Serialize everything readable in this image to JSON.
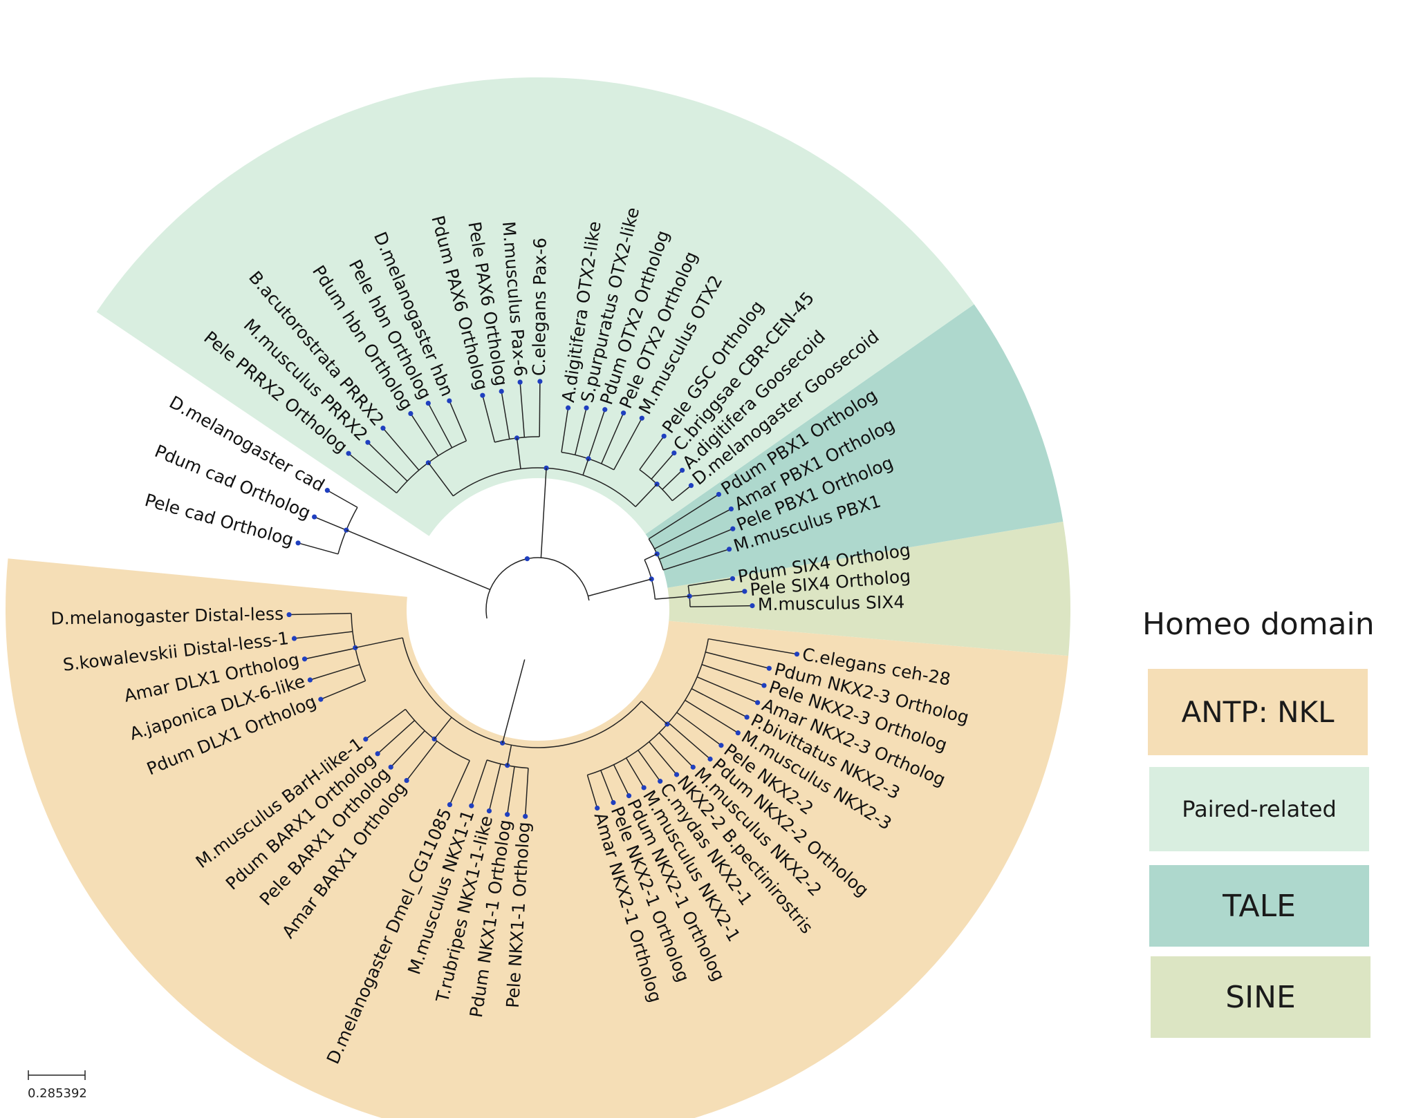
{
  "legend": {
    "title": "Homeo domain",
    "items": [
      {
        "label": "ANTP: NKL",
        "color": "#f5deb6"
      },
      {
        "label": "Paired-related",
        "color": "#d9eee0"
      },
      {
        "label": "TALE",
        "color": "#aed8cd"
      },
      {
        "label": "SINE",
        "color": "#dce5c3"
      }
    ]
  },
  "scale_bar": {
    "label": "0.285392"
  },
  "clades": [
    {
      "name": "ANTP: NKL",
      "color": "#f5deb6"
    },
    {
      "name": "SINE",
      "color": "#dce5c3"
    },
    {
      "name": "TALE",
      "color": "#aed8cd"
    },
    {
      "name": "Paired-related",
      "color": "#d9eee0"
    }
  ],
  "leaves": [
    {
      "label": "C.elegans ceh-28",
      "clade": "ANTP: NKL"
    },
    {
      "label": "Pdum NKX2-3 Ortholog",
      "clade": "ANTP: NKL"
    },
    {
      "label": "Pele NKX2-3 Ortholog",
      "clade": "ANTP: NKL"
    },
    {
      "label": "Amar NKX2-3 Ortholog",
      "clade": "ANTP: NKL"
    },
    {
      "label": "P.bivittatus NKX2-3",
      "clade": "ANTP: NKL"
    },
    {
      "label": "M.musculus NKX2-3",
      "clade": "ANTP: NKL"
    },
    {
      "label": "Pele NKX2-2",
      "clade": "ANTP: NKL"
    },
    {
      "label": "Pdum NKX2-2 Ortholog",
      "clade": "ANTP: NKL"
    },
    {
      "label": "M.musculus NKX2-2",
      "clade": "ANTP: NKL"
    },
    {
      "label": "NKX2-2 B.pectinirostris",
      "clade": "ANTP: NKL"
    },
    {
      "label": "C.mydas NKX2-1",
      "clade": "ANTP: NKL"
    },
    {
      "label": "M.musculus NKX2-1",
      "clade": "ANTP: NKL"
    },
    {
      "label": "Pdum NKX2-1 Ortholog",
      "clade": "ANTP: NKL"
    },
    {
      "label": "Pele NKX2-1 Ortholog",
      "clade": "ANTP: NKL"
    },
    {
      "label": "Amar NKX2-1 Ortholog",
      "clade": "ANTP: NKL"
    },
    {
      "label": "Pele NKX1-1 Ortholog",
      "clade": "ANTP: NKL"
    },
    {
      "label": "Pdum NKX1-1 Ortholog",
      "clade": "ANTP: NKL"
    },
    {
      "label": "T.rubripes NKX1-1-like",
      "clade": "ANTP: NKL"
    },
    {
      "label": "M.musculus NKX1-1",
      "clade": "ANTP: NKL"
    },
    {
      "label": "D.melanogaster Dmel_CG11085",
      "clade": "ANTP: NKL"
    },
    {
      "label": "Amar BARX1 Ortholog",
      "clade": "ANTP: NKL"
    },
    {
      "label": "Pele BARX1 Ortholog",
      "clade": "ANTP: NKL"
    },
    {
      "label": "Pdum BARX1 Ortholog",
      "clade": "ANTP: NKL"
    },
    {
      "label": "M.musculus BarH-like-1",
      "clade": "ANTP: NKL"
    },
    {
      "label": "Pdum DLX1 Ortholog",
      "clade": "ANTP: NKL"
    },
    {
      "label": "A.japonica DLX-6-like",
      "clade": "ANTP: NKL"
    },
    {
      "label": "Amar DLX1 Ortholog",
      "clade": "ANTP: NKL"
    },
    {
      "label": "S.kowalevskii Distal-less-1",
      "clade": "ANTP: NKL"
    },
    {
      "label": "D.melanogaster Distal-less",
      "clade": "ANTP: NKL"
    },
    {
      "label": "Pele cad Ortholog",
      "clade": ""
    },
    {
      "label": "Pdum cad Ortholog",
      "clade": ""
    },
    {
      "label": "D.melanogaster cad",
      "clade": ""
    },
    {
      "label": "Pele PRRX2 Ortholog",
      "clade": "Paired-related"
    },
    {
      "label": "M.musculus PRRX2",
      "clade": "Paired-related"
    },
    {
      "label": "B.acutorostrata PRRX2",
      "clade": "Paired-related"
    },
    {
      "label": "Pdum hbn Ortholog",
      "clade": "Paired-related"
    },
    {
      "label": "Pele hbn Ortholog",
      "clade": "Paired-related"
    },
    {
      "label": "D.melanogaster hbn",
      "clade": "Paired-related"
    },
    {
      "label": "Pdum PAX6 Ortholog",
      "clade": "Paired-related"
    },
    {
      "label": "Pele PAX6 Ortholog",
      "clade": "Paired-related"
    },
    {
      "label": "M.musculus Pax-6",
      "clade": "Paired-related"
    },
    {
      "label": "C.elegans Pax-6",
      "clade": "Paired-related"
    },
    {
      "label": "A.digitifera OTX2-like",
      "clade": "Paired-related"
    },
    {
      "label": "S.purpuratus OTX2-like",
      "clade": "Paired-related"
    },
    {
      "label": "Pdum OTX2 Ortholog",
      "clade": "Paired-related"
    },
    {
      "label": "Pele OTX2 Ortholog",
      "clade": "Paired-related"
    },
    {
      "label": "M.musculus OTX2",
      "clade": "Paired-related"
    },
    {
      "label": "Pele GSC Ortholog",
      "clade": "Paired-related"
    },
    {
      "label": "C.briggsae CBR-CEN-45",
      "clade": "Paired-related"
    },
    {
      "label": "A.digitifera Goosecoid",
      "clade": "Paired-related"
    },
    {
      "label": "D.melanogaster Goosecoid",
      "clade": "Paired-related"
    },
    {
      "label": "Pdum PBX1 Ortholog",
      "clade": "TALE"
    },
    {
      "label": "Amar PBX1 Ortholog",
      "clade": "TALE"
    },
    {
      "label": "Pele PBX1 Ortholog",
      "clade": "TALE"
    },
    {
      "label": "M.musculus PBX1",
      "clade": "TALE"
    },
    {
      "label": "Pdum SIX4 Ortholog",
      "clade": "SINE"
    },
    {
      "label": "Pele SIX4 Ortholog",
      "clade": "SINE"
    },
    {
      "label": "M.musculus SIX4",
      "clade": "SINE"
    }
  ]
}
